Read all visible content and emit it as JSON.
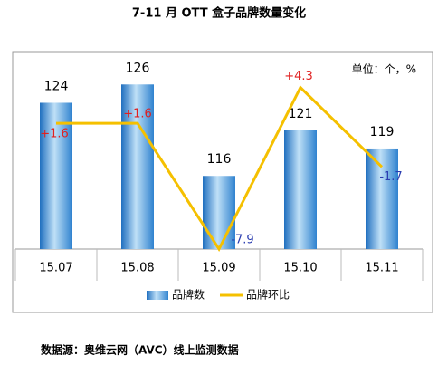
{
  "chart_data": {
    "type": "bar_line",
    "title": "7-11 月 OTT 盒子品牌数量变化",
    "unit_label": "单位：个，%",
    "source": "数据源：奥维云网（AVC）线上监测数据",
    "categories": [
      "15.07",
      "15.08",
      "15.09",
      "15.10",
      "15.11"
    ],
    "series": [
      {
        "name": "品牌数",
        "type": "bar",
        "color": "#3d8fd6",
        "values": [
          124,
          126,
          116,
          121,
          119
        ]
      },
      {
        "name": "品牌环比",
        "type": "line",
        "axis": "y2",
        "color": "#f5c000",
        "values": [
          1.6,
          1.6,
          -7.9,
          4.3,
          -1.7
        ],
        "value_labels": [
          "+1.6",
          "+1.6",
          "-7.9",
          "+4.3",
          "-1.7"
        ]
      }
    ],
    "ylim": [
      108,
      129
    ],
    "y2lim": [
      -7.9,
      6.6
    ]
  }
}
